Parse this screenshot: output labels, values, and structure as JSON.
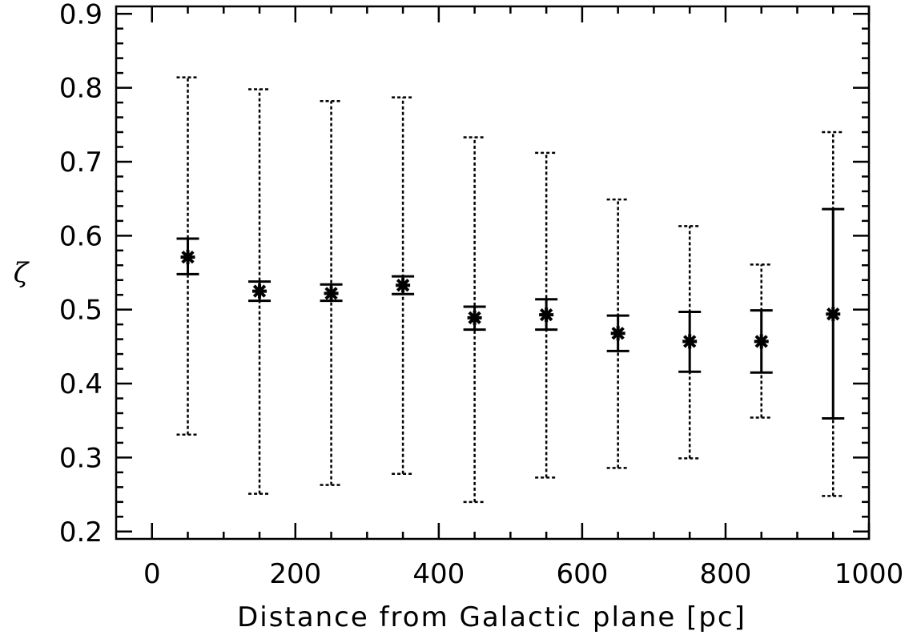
{
  "chart_data": {
    "type": "scatter",
    "title": "",
    "xlabel": "Distance from Galactic plane [pc]",
    "ylabel": "ζ",
    "xlim": [
      -50,
      1000
    ],
    "ylim": [
      0.19,
      0.91
    ],
    "xticks": [
      0,
      200,
      400,
      600,
      800,
      1000
    ],
    "xtick_labels": [
      "0",
      "200",
      "400",
      "600",
      "800",
      "1000"
    ],
    "yticks": [
      0.2,
      0.3,
      0.4,
      0.5,
      0.6,
      0.7,
      0.8,
      0.9
    ],
    "ytick_labels": [
      "0.2",
      "0.3",
      "0.4",
      "0.5",
      "0.6",
      "0.7",
      "0.8",
      "0.9"
    ],
    "grid": false,
    "legend": "none",
    "series": [
      {
        "marker": "asterisk",
        "x": [
          50,
          150,
          250,
          350,
          450,
          550,
          650,
          750,
          850,
          950
        ],
        "y": [
          0.571,
          0.525,
          0.522,
          0.533,
          0.489,
          0.493,
          0.468,
          0.457,
          0.457,
          0.494
        ],
        "err_low": [
          0.548,
          0.512,
          0.512,
          0.521,
          0.473,
          0.473,
          0.444,
          0.416,
          0.415,
          0.353
        ],
        "err_high": [
          0.596,
          0.538,
          0.534,
          0.545,
          0.504,
          0.514,
          0.492,
          0.497,
          0.499,
          0.636
        ],
        "spread_low": [
          0.331,
          0.251,
          0.263,
          0.278,
          0.24,
          0.273,
          0.286,
          0.299,
          0.354,
          0.248
        ],
        "spread_high": [
          0.814,
          0.798,
          0.782,
          0.787,
          0.733,
          0.712,
          0.649,
          0.613,
          0.561,
          0.74
        ]
      }
    ]
  }
}
